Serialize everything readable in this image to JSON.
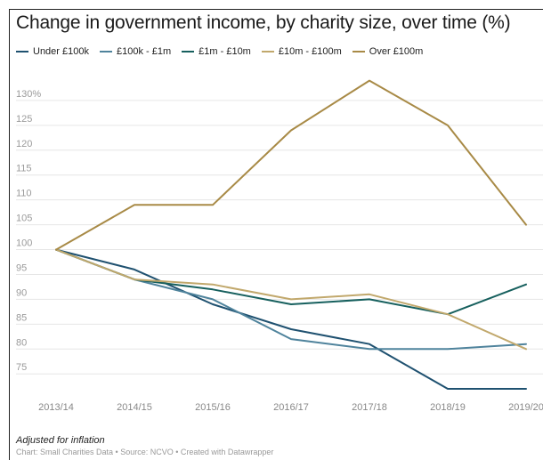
{
  "chart_data": {
    "type": "line",
    "title": "Change in government income, by charity size, over time (%)",
    "categories": [
      "2013/14",
      "2014/15",
      "2015/16",
      "2016/17",
      "2017/18",
      "2018/19",
      "2019/20"
    ],
    "y_ticks": [
      "130%",
      "125",
      "120",
      "115",
      "110",
      "105",
      "100",
      "95",
      "90",
      "85",
      "80",
      "75"
    ],
    "ylim": [
      72,
      135
    ],
    "grid": true,
    "legend_position": "top",
    "series": [
      {
        "name": "Under £100k",
        "color": "#1f5170",
        "values": [
          100,
          96,
          89,
          84,
          81,
          72,
          72
        ]
      },
      {
        "name": "£100k - £1m",
        "color": "#4f839c",
        "values": [
          100,
          94,
          90,
          82,
          80,
          80,
          81
        ]
      },
      {
        "name": "£1m - £10m",
        "color": "#17605e",
        "values": [
          100,
          94,
          92,
          89,
          90,
          87,
          93
        ]
      },
      {
        "name": "£10m - £100m",
        "color": "#c1a86c",
        "values": [
          100,
          94,
          93,
          90,
          91,
          87,
          80
        ]
      },
      {
        "name": "Over £100m",
        "color": "#a88a46",
        "values": [
          100,
          109,
          109,
          124,
          134,
          125,
          105
        ]
      }
    ],
    "note": "Adjusted for inflation",
    "credit": "Chart: Small Charities Data • Source: NCVO • Created with Datawrapper"
  }
}
